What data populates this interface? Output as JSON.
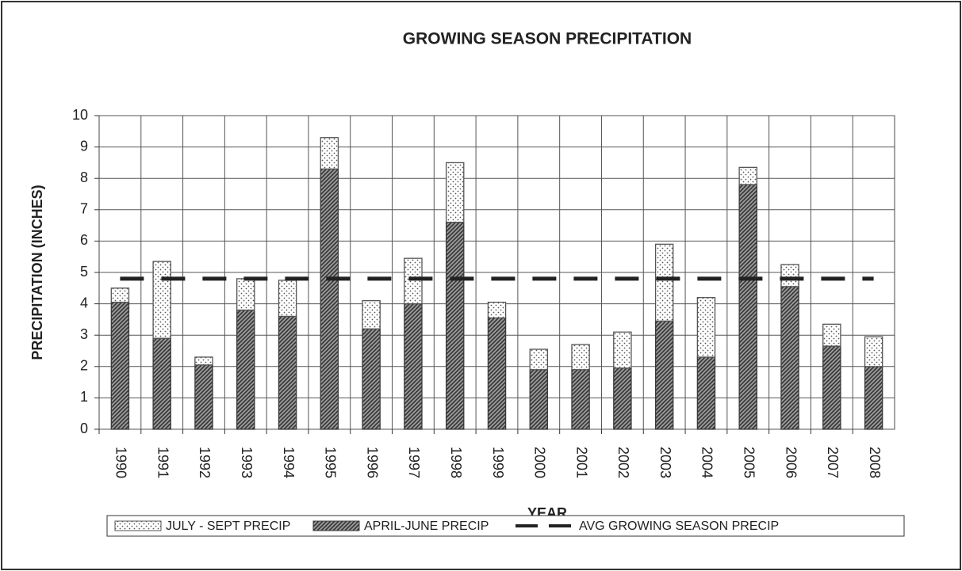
{
  "chart_data": {
    "type": "bar",
    "stacked": true,
    "title": "GROWING SEASON PRECIPITATION",
    "x_label": "YEAR",
    "y_label": "PRECIPITATION (INCHES)",
    "categories": [
      "1990",
      "1991",
      "1992",
      "1993",
      "1994",
      "1995",
      "1996",
      "1997",
      "1998",
      "1999",
      "2000",
      "2001",
      "2002",
      "2003",
      "2004",
      "2005",
      "2006",
      "2007",
      "2008"
    ],
    "series": [
      {
        "name": "JULY - SEPT PRECIP",
        "type": "bar",
        "color": "#555555",
        "pattern": "dots",
        "values": [
          0.45,
          2.45,
          0.25,
          1.0,
          1.15,
          1.0,
          0.9,
          1.45,
          1.9,
          0.5,
          0.65,
          0.8,
          1.15,
          2.45,
          1.9,
          0.55,
          0.7,
          0.7,
          0.95
        ]
      },
      {
        "name": "APRIL-JUNE PRECIP",
        "type": "bar",
        "color": "#3a3a3a",
        "pattern": "hatch",
        "values": [
          4.05,
          2.9,
          2.05,
          3.8,
          3.6,
          8.3,
          3.2,
          4.0,
          6.6,
          3.55,
          1.9,
          1.9,
          1.95,
          3.45,
          2.3,
          7.8,
          4.55,
          2.65,
          2.0
        ]
      },
      {
        "name": "AVG GROWING SEASON PRECIP",
        "type": "line",
        "color": "#222222",
        "line_style": "dashed",
        "values": [
          4.8,
          4.8,
          4.8,
          4.8,
          4.8,
          4.8,
          4.8,
          4.8,
          4.8,
          4.8,
          4.8,
          4.8,
          4.8,
          4.8,
          4.8,
          4.8,
          4.8,
          4.8,
          4.8
        ]
      }
    ],
    "ylim": [
      0,
      10
    ],
    "yticks": [
      0,
      1,
      2,
      3,
      4,
      5,
      6,
      7,
      8,
      9,
      10
    ],
    "grid": true,
    "legend": "bottom"
  }
}
